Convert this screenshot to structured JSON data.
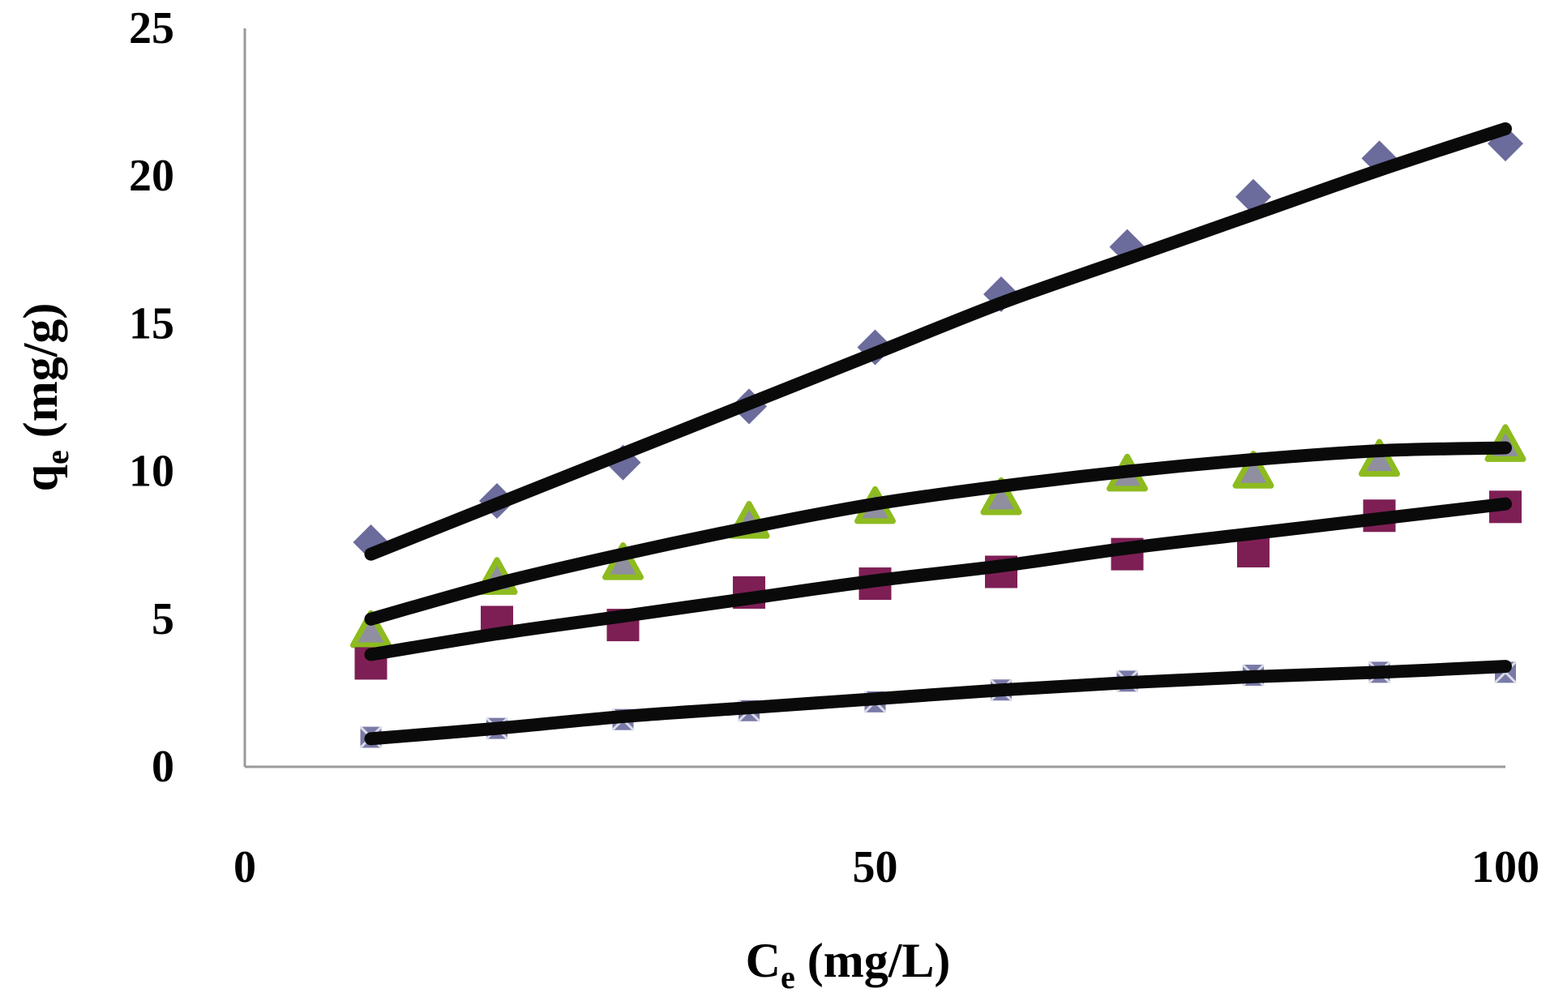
{
  "chart_data": {
    "type": "scatter",
    "title": "",
    "xlabel": {
      "main": "C",
      "sub": "e",
      "rest": " (mg/L)"
    },
    "ylabel": {
      "main": "q",
      "sub": "e",
      "rest": " (mg/g)"
    },
    "xlim": [
      0,
      100
    ],
    "ylim": [
      0,
      25
    ],
    "xticks": [
      "0",
      "50",
      "100"
    ],
    "xtick_values": [
      0,
      50,
      100
    ],
    "yticks": [
      "0",
      "5",
      "10",
      "15",
      "20",
      "25"
    ],
    "ytick_values": [
      0,
      5,
      10,
      15,
      20,
      25
    ],
    "grid": false,
    "legend": "none",
    "axis_color": "#9a9a9a",
    "fit_color": "#0a0a0a",
    "series": [
      {
        "marker": "diamond",
        "color": "#6b6b9c",
        "x": [
          10,
          20,
          30,
          40,
          50,
          60,
          70,
          80,
          90,
          100
        ],
        "y": [
          7.6,
          9.0,
          10.3,
          12.2,
          14.2,
          16.0,
          17.6,
          19.3,
          20.6,
          21.1
        ],
        "fit_y": [
          7.2,
          8.9,
          10.6,
          12.3,
          14.0,
          15.7,
          17.2,
          18.7,
          20.2,
          21.6
        ]
      },
      {
        "marker": "triangle",
        "color": "#8dbb1f",
        "fill": "#8f8f9f",
        "x": [
          10,
          20,
          30,
          40,
          50,
          60,
          70,
          80,
          90,
          100
        ],
        "y": [
          4.6,
          6.4,
          6.9,
          8.3,
          8.8,
          9.1,
          9.9,
          10.0,
          10.4,
          10.9
        ],
        "fit_y": [
          5.0,
          6.2,
          7.2,
          8.1,
          8.9,
          9.5,
          10.0,
          10.4,
          10.7,
          10.8
        ]
      },
      {
        "marker": "square",
        "color": "#7d1f55",
        "x": [
          10,
          20,
          30,
          40,
          50,
          60,
          70,
          80,
          90,
          100
        ],
        "y": [
          3.5,
          4.9,
          4.8,
          5.9,
          6.2,
          6.6,
          7.2,
          7.3,
          8.5,
          8.8
        ],
        "fit_y": [
          3.8,
          4.5,
          5.1,
          5.7,
          6.3,
          6.8,
          7.4,
          7.9,
          8.4,
          8.9
        ]
      },
      {
        "marker": "x-square",
        "color": "#7a7aa8",
        "x": [
          10,
          20,
          30,
          40,
          50,
          60,
          70,
          80,
          90,
          100
        ],
        "y": [
          1.0,
          1.3,
          1.6,
          1.9,
          2.2,
          2.6,
          2.9,
          3.1,
          3.2,
          3.2
        ],
        "fit_y": [
          0.95,
          1.3,
          1.7,
          2.0,
          2.3,
          2.6,
          2.85,
          3.05,
          3.2,
          3.4
        ]
      }
    ]
  }
}
